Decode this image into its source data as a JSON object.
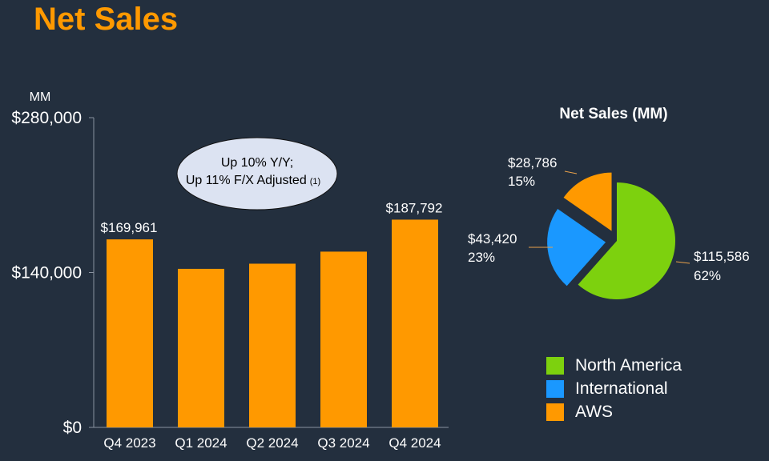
{
  "title": "Net Sales",
  "colors": {
    "bar": "#ff9900",
    "north_america": "#7dd10e",
    "international": "#1a98ff",
    "aws": "#ff9900",
    "title": "#ff9900",
    "callout_fill": "#dce3f2"
  },
  "chart_data": [
    {
      "type": "bar",
      "unit_label": "MM",
      "categories": [
        "Q4 2023",
        "Q1 2024",
        "Q2 2024",
        "Q3 2024",
        "Q4 2024"
      ],
      "values": [
        169961,
        143313,
        147977,
        158877,
        187792
      ],
      "data_labels": [
        "$169,961",
        "",
        "",
        "",
        "$187,792"
      ],
      "y_ticks": [
        0,
        140000,
        280000
      ],
      "y_tick_labels": [
        "$0",
        "$140,000",
        "$280,000"
      ],
      "ylim": [
        0,
        280000
      ],
      "callout": {
        "line1": "Up 10% Y/Y;",
        "line2": "Up 11% F/X Adjusted",
        "footnote": "(1)"
      }
    },
    {
      "type": "pie",
      "title": "Net Sales (MM)",
      "slices": [
        {
          "name": "North America",
          "value": 115586,
          "value_label": "$115,586",
          "pct_label": "62%",
          "color": "#7dd10e"
        },
        {
          "name": "International",
          "value": 43420,
          "value_label": "$43,420",
          "pct_label": "23%",
          "color": "#1a98ff"
        },
        {
          "name": "AWS",
          "value": 28786,
          "value_label": "$28,786",
          "pct_label": "15%",
          "color": "#ff9900"
        }
      ]
    }
  ]
}
